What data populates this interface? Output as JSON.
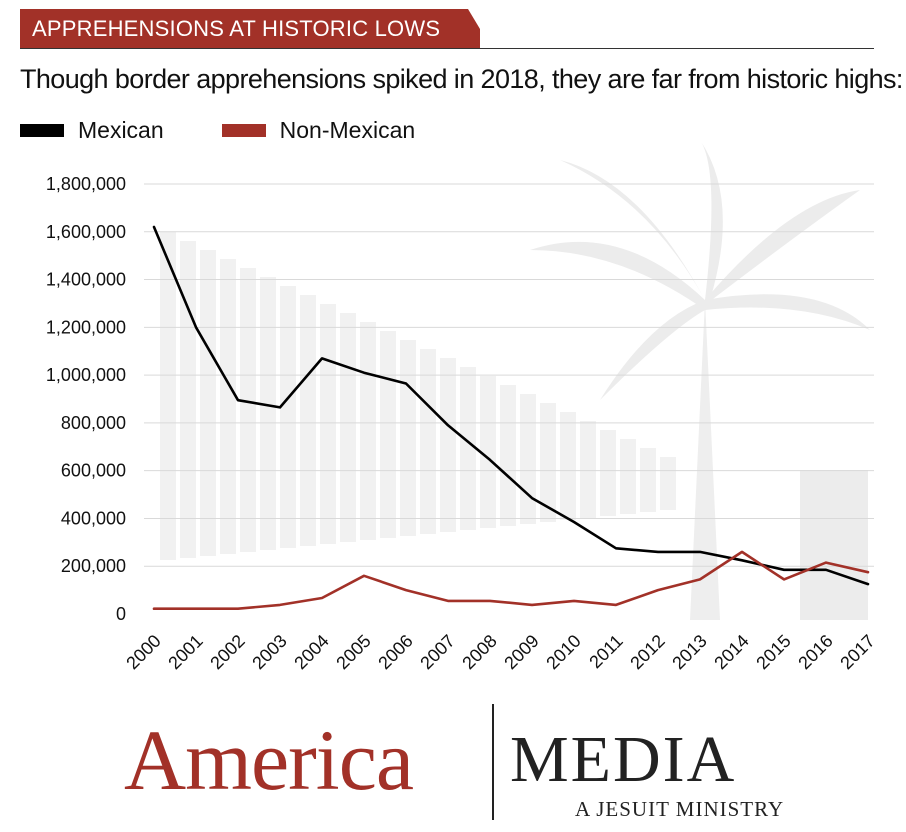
{
  "header": {
    "banner": "APPREHENSIONS AT HISTORIC LOWS",
    "subtitle": "Though border apprehensions spiked in 2018, they are far from historic highs:"
  },
  "legend": {
    "items": [
      {
        "label": "Mexican",
        "color": "#000000"
      },
      {
        "label": "Non-Mexican",
        "color": "#a23128"
      }
    ]
  },
  "chart_data": {
    "type": "line",
    "title": "",
    "xlabel": "",
    "ylabel": "",
    "x": [
      "2000",
      "2001",
      "2002",
      "2003",
      "2004",
      "2005",
      "2006",
      "2007",
      "2008",
      "2009",
      "2010",
      "2011",
      "2012",
      "2013",
      "2014",
      "2015",
      "2016",
      "2017"
    ],
    "yticks": [
      "0",
      "200,000",
      "400,000",
      "600,000",
      "800,000",
      "1,000,000",
      "1,200,000",
      "1,400,000",
      "1,600,000",
      "1,800,000"
    ],
    "ylim": [
      0,
      1800000
    ],
    "grid": true,
    "legend_position": "top-left",
    "series": [
      {
        "name": "Mexican",
        "color": "#000000",
        "values": [
          1620000,
          1200000,
          895000,
          865000,
          1070000,
          1010000,
          965000,
          790000,
          645000,
          485000,
          385000,
          275000,
          260000,
          260000,
          225000,
          185000,
          185000,
          125000
        ]
      },
      {
        "name": "Non-Mexican",
        "color": "#a23128",
        "values": [
          22000,
          22000,
          22000,
          38000,
          67000,
          160000,
          100000,
          55000,
          55000,
          38000,
          55000,
          38000,
          100000,
          145000,
          260000,
          145000,
          215000,
          175000
        ]
      }
    ]
  },
  "footer": {
    "brand": "America",
    "media": "MEDIA",
    "tagline": "A JESUIT MINISTRY"
  }
}
